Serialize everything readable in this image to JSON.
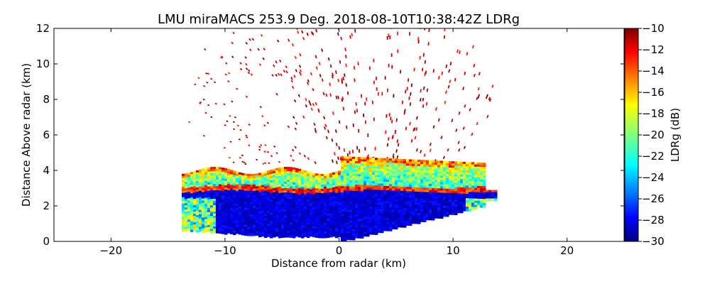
{
  "chart_data": {
    "type": "heatmap",
    "title": "LMU miraMACS 253.9 Deg. 2018-08-10T10:38:42Z  LDRg",
    "xlabel": "Distance from radar (km)",
    "ylabel": "Distance Above radar  (km)",
    "xlim": [
      -25,
      25
    ],
    "ylim": [
      0,
      12
    ],
    "xticks": [
      -20,
      -10,
      0,
      10,
      20
    ],
    "xtick_labels": [
      "−20",
      "−10",
      "0",
      "10",
      "20"
    ],
    "yticks": [
      0,
      2,
      4,
      6,
      8,
      10,
      12
    ],
    "ytick_labels": [
      "0",
      "2",
      "4",
      "6",
      "8",
      "10",
      "12"
    ],
    "colorbar": {
      "label": "LDRg (dB)",
      "range": [
        -30,
        -10
      ],
      "ticks": [
        -30,
        -28,
        -26,
        -24,
        -22,
        -20,
        -18,
        -16,
        -14,
        -12,
        -10
      ],
      "tick_labels": [
        "−30",
        "−28",
        "−26",
        "−24",
        "−22",
        "−20",
        "−18",
        "−16",
        "−14",
        "−12",
        "−10"
      ],
      "colormap": "jet",
      "colors": [
        "#00007f",
        "#0000ff",
        "#007fff",
        "#00ffff",
        "#7fff7f",
        "#ffff00",
        "#ff7f00",
        "#ff0000",
        "#7f0000"
      ]
    },
    "scan": {
      "azimuth_deg": 253.9,
      "max_range_km": 14,
      "cloud_layer_km": [
        0.3,
        4.3
      ],
      "bright_band_km": 3.0,
      "cloud_top_left_km": 4.0,
      "cloud_top_right_km": 4.8,
      "scatter_top_km": 12
    }
  }
}
